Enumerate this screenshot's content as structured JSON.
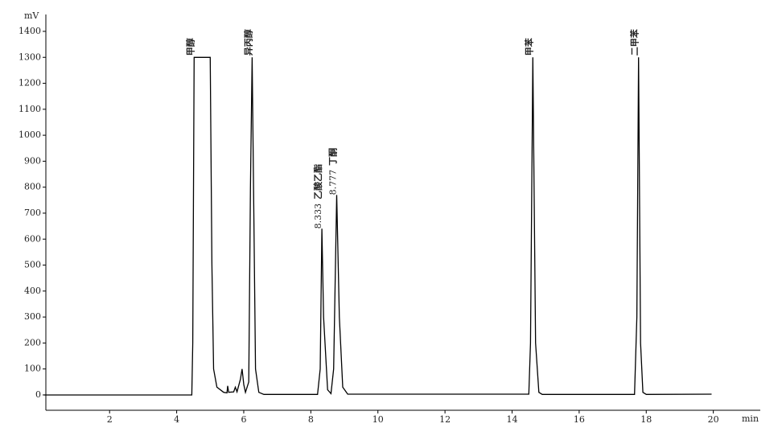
{
  "chart_data": {
    "type": "line",
    "y_label": "mV",
    "x_label": "min",
    "x": [
      0.05,
      4.45,
      4.48,
      4.52,
      5.0,
      5.05,
      5.1,
      5.2,
      5.4,
      5.5,
      5.52,
      5.55,
      5.7,
      5.75,
      5.8,
      5.9,
      5.95,
      6.0,
      6.05,
      6.15,
      6.2,
      6.25,
      6.3,
      6.35,
      6.45,
      6.6,
      8.2,
      8.28,
      8.33,
      8.38,
      8.5,
      8.6,
      8.68,
      8.77,
      8.85,
      8.95,
      9.1,
      14.5,
      14.55,
      14.62,
      14.7,
      14.8,
      14.9,
      17.65,
      17.72,
      17.77,
      17.83,
      17.9,
      18.0,
      19.95
    ],
    "values": [
      0,
      0,
      200,
      1300,
      1300,
      500,
      100,
      30,
      10,
      8,
      35,
      10,
      12,
      30,
      12,
      60,
      100,
      40,
      10,
      50,
      800,
      1300,
      700,
      100,
      10,
      2,
      2,
      100,
      640,
      300,
      20,
      5,
      100,
      770,
      300,
      30,
      3,
      3,
      200,
      1300,
      200,
      10,
      2,
      2,
      300,
      1300,
      200,
      10,
      2,
      3
    ],
    "color": "#000000",
    "xlim": [
      0.1,
      21.4
    ],
    "ylim": [
      -59,
      1465
    ],
    "xticks": [
      2,
      4,
      6,
      8,
      10,
      12,
      14,
      16,
      18,
      20
    ],
    "yticks": [
      0,
      100,
      200,
      300,
      400,
      500,
      600,
      700,
      800,
      900,
      1000,
      1100,
      1200,
      1300,
      1400
    ],
    "annotations": [
      {
        "x": 4.52,
        "text": "甲醇"
      },
      {
        "x": 6.25,
        "text": "异丙醇"
      },
      {
        "x": 8.333,
        "time": "8.333",
        "text": "乙酸乙酯"
      },
      {
        "x": 8.777,
        "time": "8.777",
        "text": "丁酮"
      },
      {
        "x": 14.62,
        "text": "甲苯"
      },
      {
        "x": 17.77,
        "text": "二甲苯"
      }
    ]
  }
}
